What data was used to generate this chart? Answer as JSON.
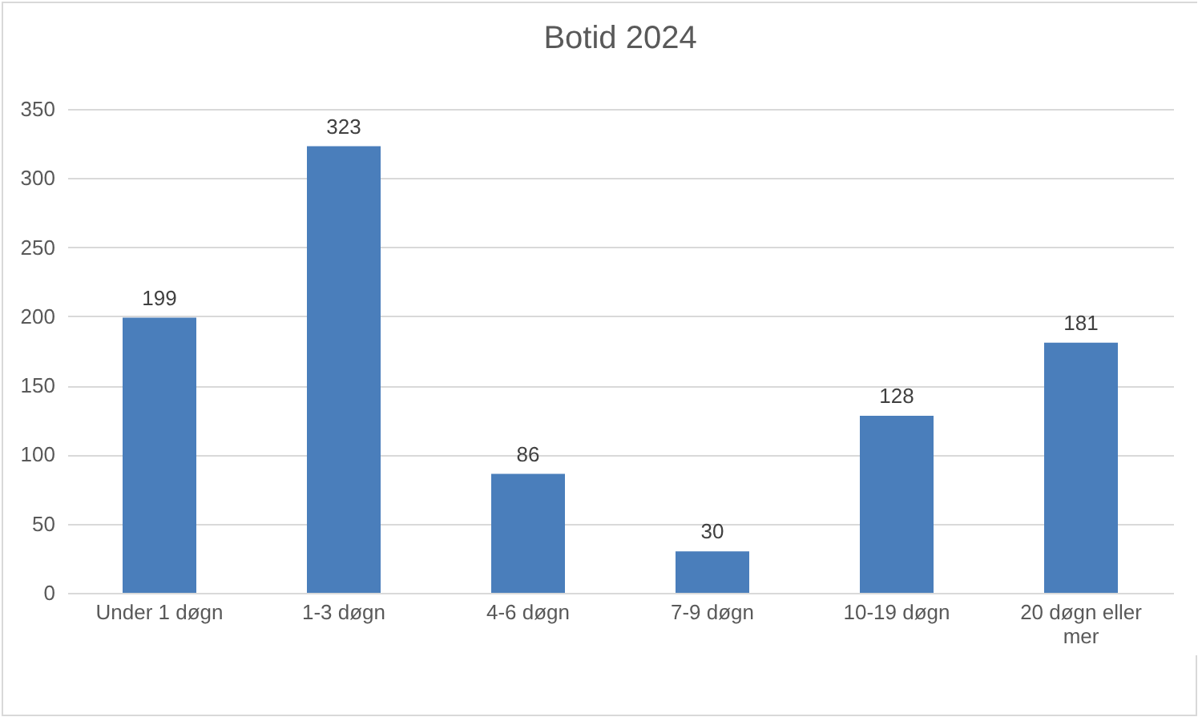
{
  "chart_data": {
    "type": "bar",
    "title": "Botid 2024",
    "categories": [
      "Under 1 døgn",
      "1-3 døgn",
      "4-6 døgn",
      "7-9 døgn",
      "10-19 døgn",
      "20 døgn eller mer"
    ],
    "values": [
      199,
      323,
      86,
      30,
      128,
      181
    ],
    "color": "#4a7ebb",
    "ylim": [
      0,
      350
    ],
    "yticks": [
      0,
      50,
      100,
      150,
      200,
      250,
      300,
      350
    ],
    "grid": "y",
    "data_labels": true
  }
}
